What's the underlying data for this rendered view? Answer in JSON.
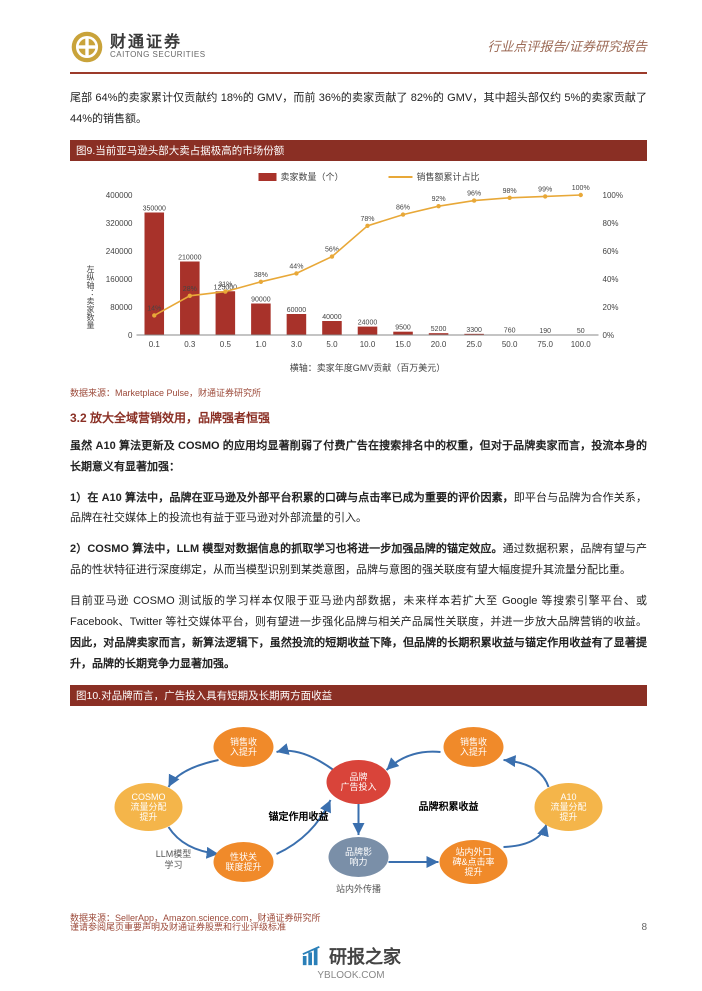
{
  "header": {
    "logo_cn": "财通证券",
    "logo_en": "CAITONG SECURITIES",
    "logo_gold": "#c9a33a",
    "logo_brown": "#6b4a1f",
    "right_text": "行业点评报告/证券研究报告"
  },
  "intro_para": "尾部 64%的卖家累计仅贡献约 18%的 GMV，而前 36%的卖家贡献了 82%的 GMV，其中超头部仅约 5%的卖家贡献了 44%的销售额。",
  "fig9": {
    "title": "图9.当前亚马逊头部大卖占据极高的市场份额",
    "source": "数据来源：Marketplace Pulse，财通证券研究所",
    "type": "bar+line",
    "legend": {
      "bar": "卖家数量（个）",
      "line": "销售额累计占比"
    },
    "x_label": "横轴：卖家年度GMV贡献（百万美元）",
    "y_left_label": "左纵轴：卖家数量",
    "categories": [
      "0.1",
      "0.3",
      "0.5",
      "1.0",
      "3.0",
      "5.0",
      "10.0",
      "15.0",
      "20.0",
      "25.0",
      "50.0",
      "75.0",
      "100.0"
    ],
    "bar_values": [
      350000,
      210000,
      125000,
      90000,
      60000,
      40000,
      24000,
      9500,
      5200,
      3300,
      760,
      190,
      50
    ],
    "bar_labels_show": [
      350000,
      210000,
      125000,
      90000,
      60000,
      40000,
      24000,
      9500,
      5200,
      3300,
      760,
      190,
      50
    ],
    "line_values": [
      14,
      28,
      31,
      38,
      44,
      56,
      78,
      86,
      92,
      96,
      98,
      99,
      100
    ],
    "y_left_ticks": [
      0,
      80000,
      160000,
      240000,
      320000,
      400000
    ],
    "y_right_ticks": [
      0,
      20,
      40,
      60,
      80,
      100
    ],
    "colors": {
      "bar": "#a8322a",
      "line": "#e8a838",
      "axis": "#888888",
      "grid": "#dddddd",
      "bg": "#ffffff",
      "text": "#444444"
    },
    "label_fontsize": 8
  },
  "section_3_2": "3.2  放大全域营销效用，品牌强者恒强",
  "para1_lead": "虽然 A10 算法更新及 COSMO 的应用均显著削弱了付费广告在搜索排名中的权重，但对于品牌卖家而言，投流本身的长期意义有显著加强：",
  "para2_lead": "1）在 A10 算法中，品牌在亚马逊及外部平台积累的口碑与点击率已成为重要的评价因素，",
  "para2_rest": "即平台与品牌为合作关系，品牌在社交媒体上的投流也有益于亚马逊对外部流量的引入。",
  "para3_lead": "2）COSMO 算法中，LLM 模型对数据信息的抓取学习也将进一步加强品牌的锚定效应。",
  "para3_rest": "通过数据积累，品牌有望与产品的性状特征进行深度绑定，从而当模型识别到某类意图，品牌与意图的强关联度有望大幅度提升其流量分配比重。",
  "para4_a": "目前亚马逊 COSMO 测试版的学习样本仅限于亚马逊内部数据，未来样本若扩大至 Google 等搜索引擎平台、或 Facebook、Twitter 等社交媒体平台，则有望进一步强化品牌与相关产品属性关联度，并进一步放大品牌营销的收益。",
  "para4_b": "因此，对品牌卖家而言，新算法逻辑下，虽然投流的短期收益下降，但品牌的长期积累收益与锚定作用收益有了显著提升，品牌的长期竞争力显著加强。",
  "fig10": {
    "title": "图10.对品牌而言，广告投入具有短期及长期两方面收益",
    "source": "数据来源：SellerApp，Amazon.science.com，财通证券研究所",
    "type": "flowchart",
    "nodes": {
      "center": {
        "label": "品牌\n广告投入",
        "color": "#d9443a",
        "text": "#ffffff",
        "shape": "ellipse"
      },
      "left_top": {
        "label": "销售收\n入提升",
        "color": "#f08a2a",
        "text": "#ffffff",
        "shape": "ellipse"
      },
      "left_mid": {
        "label": "COSMO\n流量分配\n提升",
        "color": "#f4b54a",
        "text": "#ffffff",
        "shape": "ellipse"
      },
      "left_bot": {
        "label": "性状关\n联度提升",
        "color": "#f08a2a",
        "text": "#ffffff",
        "shape": "ellipse"
      },
      "bottom": {
        "label": "品牌影\n响力",
        "color": "#7a8fa8",
        "text": "#ffffff",
        "shape": "ellipse"
      },
      "right_top": {
        "label": "销售收\n入提升",
        "color": "#f08a2a",
        "text": "#ffffff",
        "shape": "ellipse"
      },
      "right_mid": {
        "label": "A10\n流量分配\n提升",
        "color": "#f4b54a",
        "text": "#ffffff",
        "shape": "ellipse"
      },
      "right_bot": {
        "label": "站内外口\n碑&点击率\n提升",
        "color": "#f08a2a",
        "text": "#ffffff",
        "shape": "ellipse"
      }
    },
    "annotations": {
      "llm": "LLM模型\n学习",
      "anchor": "锚定作用收益",
      "accum": "品牌积累收益",
      "inout": "站内外传播"
    },
    "arrow_color": "#3a6fae",
    "anno_color": "#555555",
    "anno_fontsize": 9
  },
  "footer": "谨请参阅尾页重要声明及财通证券股票和行业评级标准",
  "page_number": "8",
  "watermark": {
    "cn": "研报之家",
    "url": "YBLOOK.COM",
    "icon_color": "#2a7fb8"
  }
}
